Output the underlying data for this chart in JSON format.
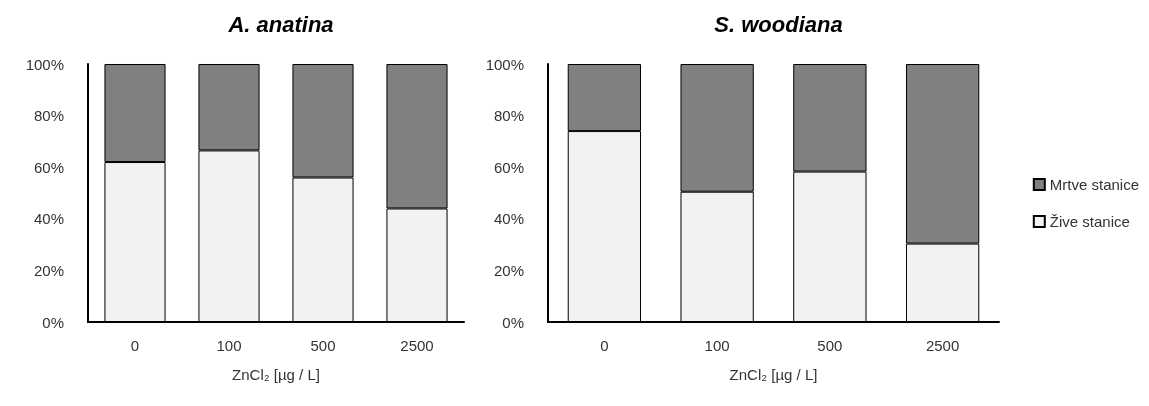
{
  "chart_data": [
    {
      "type": "bar",
      "title": "A. anatina",
      "xlabel": "ZnCl₂ [µg / L]",
      "categories": [
        "0",
        "100",
        "500",
        "2500"
      ],
      "stacked": true,
      "legend": false,
      "grid": false,
      "series": [
        {
          "color": "#f2f2f2",
          "values": [
            62,
            66.5,
            56,
            44
          ]
        },
        {
          "color": "#808080",
          "values": [
            38,
            33.5,
            44,
            56
          ]
        }
      ],
      "ylim": [
        0,
        100
      ],
      "yticks": [
        {
          "value": 0,
          "label": "0%"
        },
        {
          "value": 20,
          "label": "20%"
        },
        {
          "value": 40,
          "label": "40%"
        },
        {
          "value": 60,
          "label": "60%"
        },
        {
          "value": 80,
          "label": "80%"
        },
        {
          "value": 100,
          "label": "100%"
        }
      ]
    },
    {
      "type": "bar",
      "title": "S. woodiana",
      "xlabel": "ZnCl₂ [µg / L]",
      "categories": [
        "0",
        "100",
        "500",
        "2500"
      ],
      "stacked": true,
      "legend": "right",
      "grid": false,
      "series": [
        {
          "name": "Žive stanice",
          "color": "#f2f2f2",
          "values": [
            74,
            50.5,
            58.3,
            30.4
          ]
        },
        {
          "name": "Mrtve stanice",
          "color": "#808080",
          "values": [
            26,
            49.5,
            41.7,
            69.6
          ]
        }
      ],
      "ylim": [
        0,
        100
      ],
      "yticks": [
        {
          "value": 0,
          "label": "0%"
        },
        {
          "value": 20,
          "label": "20%"
        },
        {
          "value": 40,
          "label": "40%"
        },
        {
          "value": 60,
          "label": "60%"
        },
        {
          "value": 80,
          "label": "80%"
        },
        {
          "value": 100,
          "label": "100%"
        }
      ]
    }
  ]
}
